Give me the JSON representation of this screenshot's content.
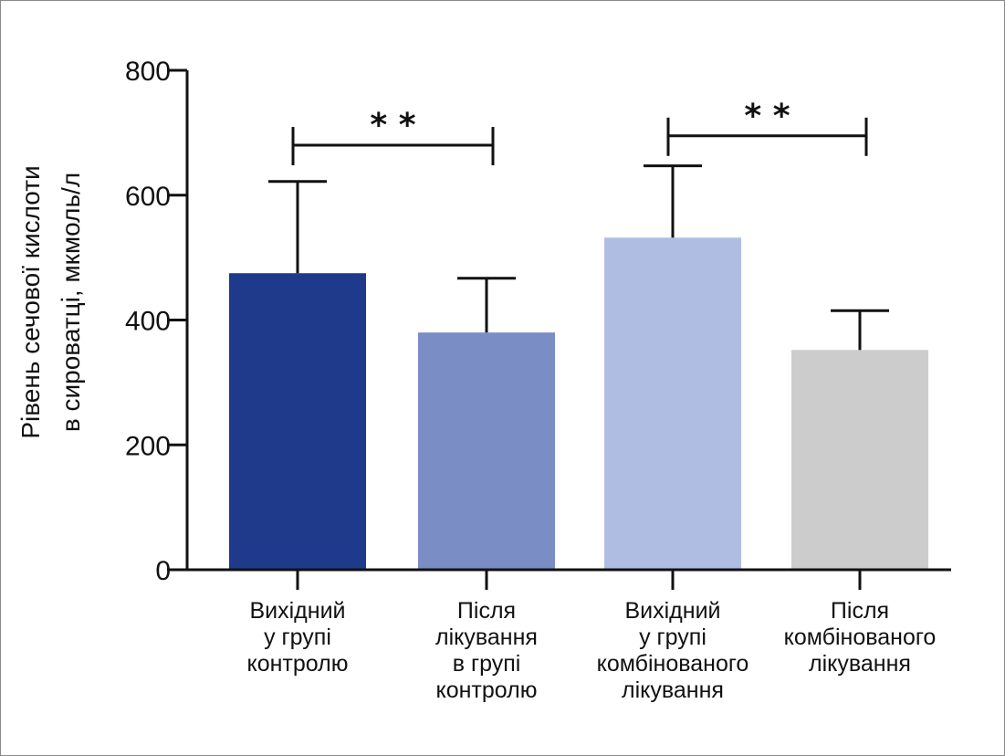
{
  "chart_data": {
    "type": "bar",
    "title": "",
    "xlabel": "",
    "ylabel_lines": [
      "Рівень сечової кислоти",
      "в сироватці, мкмоль/л"
    ],
    "ylim": [
      0,
      800
    ],
    "yticks": [
      0,
      200,
      400,
      600,
      800
    ],
    "categories": [
      [
        "Вихідний",
        "у групі",
        "контролю"
      ],
      [
        "Після",
        "лікування",
        "в групі",
        "контролю"
      ],
      [
        "Вихідний",
        "у групі",
        "комбінованого",
        "лікування"
      ],
      [
        "Після",
        "комбінованого",
        "лікування"
      ]
    ],
    "values": [
      475,
      380,
      532,
      352
    ],
    "errors": [
      147,
      87,
      115,
      63
    ],
    "colors": [
      "#1f3a8a",
      "#7a8dc5",
      "#b0bde2",
      "#cccccc"
    ],
    "significance": [
      {
        "from": 0,
        "to": 1,
        "y": 680,
        "label": "* *"
      },
      {
        "from": 2,
        "to": 3,
        "y": 695,
        "label": "* *"
      }
    ],
    "grid": false,
    "legend": "none"
  }
}
